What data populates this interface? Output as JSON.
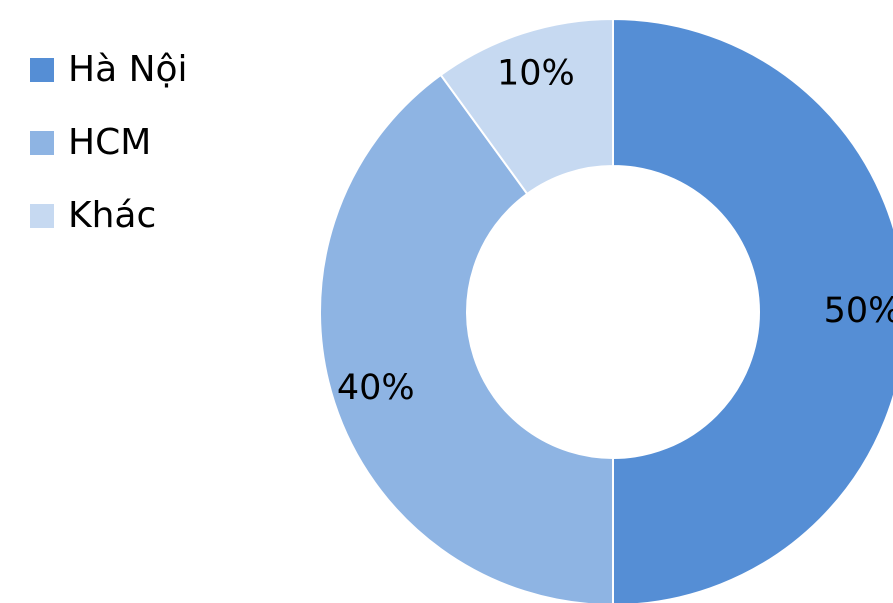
{
  "chart_data": {
    "type": "pie",
    "variant": "donut",
    "title": "",
    "categories": [
      "Hà Nội",
      "HCM",
      "Khác"
    ],
    "values": [
      50,
      40,
      10
    ],
    "value_labels": [
      "50%",
      "40%",
      "10%"
    ],
    "colors": [
      "#558ed5",
      "#8eb4e3",
      "#c6d9f1"
    ],
    "legend": "left"
  }
}
